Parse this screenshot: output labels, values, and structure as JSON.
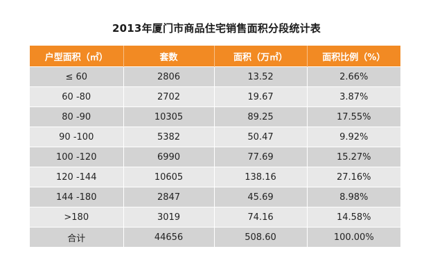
{
  "title": "2013年厦门市商品住宅销售面积分段统计表",
  "colors": {
    "header_bg": "#f28a23",
    "header_text": "#ffffff",
    "row_dark": "#d3d3d3",
    "row_light": "#e8e8e8"
  },
  "table": {
    "headers": [
      "户型面积（㎡）",
      "套数",
      "面积（万㎡）",
      "面积比例（%）"
    ],
    "rows": [
      [
        "≤ 60",
        "2806",
        "13.52",
        "2.66%"
      ],
      [
        "60 -80",
        "2702",
        "19.67",
        "3.87%"
      ],
      [
        "80 -90",
        "10305",
        "89.25",
        "17.55%"
      ],
      [
        "90 -100",
        "5382",
        "50.47",
        "9.92%"
      ],
      [
        "100 -120",
        "6990",
        "77.69",
        "15.27%"
      ],
      [
        "120 -144",
        "10605",
        "138.16",
        "27.16%"
      ],
      [
        "144 -180",
        "2847",
        "45.69",
        "8.98%"
      ],
      [
        ">180",
        "3019",
        "74.16",
        "14.58%"
      ],
      [
        "合计",
        "44656",
        "508.60",
        "100.00%"
      ]
    ]
  },
  "chart_data": {
    "type": "table",
    "title": "2013年厦门市商品住宅销售面积分段统计表",
    "columns": [
      "户型面积（㎡）",
      "套数",
      "面积（万㎡）",
      "面积比例（%）"
    ],
    "rows": [
      [
        "≤ 60",
        2806,
        13.52,
        2.66
      ],
      [
        "60 -80",
        2702,
        19.67,
        3.87
      ],
      [
        "80 -90",
        10305,
        89.25,
        17.55
      ],
      [
        "90 -100",
        5382,
        50.47,
        9.92
      ],
      [
        "100 -120",
        6990,
        77.69,
        15.27
      ],
      [
        "120 -144",
        10605,
        138.16,
        27.16
      ],
      [
        "144 -180",
        2847,
        45.69,
        8.98
      ],
      [
        ">180",
        3019,
        74.16,
        14.58
      ],
      [
        "合计",
        44656,
        508.6,
        100.0
      ]
    ]
  }
}
